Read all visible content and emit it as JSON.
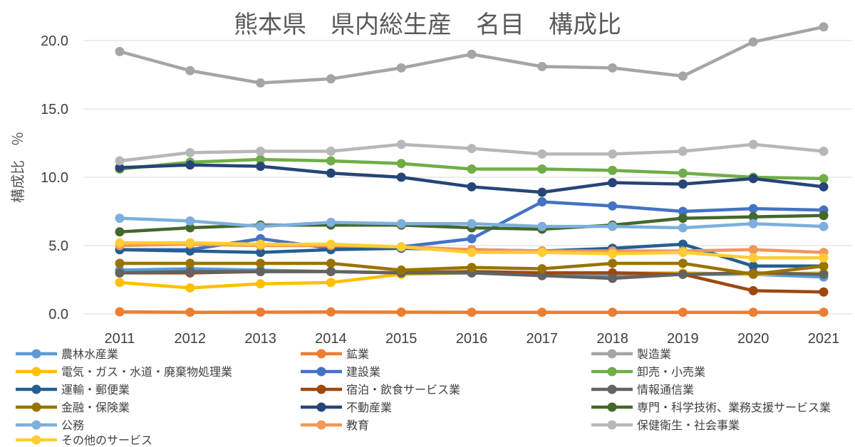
{
  "chart_data": {
    "type": "line",
    "title": "熊本県　県内総生産　名目　構成比",
    "xlabel": "",
    "ylabel": "構成比　％",
    "x": [
      "2011",
      "2012",
      "2013",
      "2014",
      "2015",
      "2016",
      "2017",
      "2018",
      "2019",
      "2020",
      "2021"
    ],
    "ylim": [
      0,
      21
    ],
    "yticks": [
      "0.0",
      "5.0",
      "10.0",
      "15.0",
      "20.0"
    ],
    "ytick_values": [
      0,
      5,
      10,
      15,
      20
    ],
    "grid": true,
    "legend_position": "bottom",
    "series": [
      {
        "name": "農林水産業",
        "color": "#5B9BD5",
        "values": [
          3.2,
          3.3,
          3.2,
          3.1,
          3.0,
          3.1,
          3.0,
          2.8,
          2.9,
          2.9,
          2.7
        ]
      },
      {
        "name": "鉱業",
        "color": "#ED7D31",
        "values": [
          0.15,
          0.12,
          0.13,
          0.14,
          0.13,
          0.12,
          0.12,
          0.12,
          0.12,
          0.12,
          0.12
        ]
      },
      {
        "name": "製造業",
        "color": "#A5A5A5",
        "values": [
          19.2,
          17.8,
          16.9,
          17.2,
          18.0,
          19.0,
          18.1,
          18.0,
          17.4,
          19.9,
          21.0
        ]
      },
      {
        "name": "電気・ガス・水道・廃棄物処理業",
        "color": "#FFC000",
        "values": [
          2.3,
          1.9,
          2.2,
          2.3,
          2.9,
          3.0,
          3.0,
          3.0,
          3.0,
          2.9,
          3.0
        ]
      },
      {
        "name": "建設業",
        "color": "#4472C4",
        "values": [
          4.7,
          4.7,
          5.5,
          4.8,
          4.9,
          5.5,
          8.2,
          7.9,
          7.5,
          7.7,
          7.6
        ]
      },
      {
        "name": "卸売・小売業",
        "color": "#70AD47",
        "values": [
          10.6,
          11.1,
          11.3,
          11.2,
          11.0,
          10.6,
          10.6,
          10.5,
          10.3,
          10.0,
          9.9
        ]
      },
      {
        "name": "運輸・郵便業",
        "color": "#255E91",
        "values": [
          4.7,
          4.6,
          4.5,
          4.7,
          4.8,
          4.7,
          4.6,
          4.8,
          5.1,
          3.5,
          3.5
        ]
      },
      {
        "name": "宿泊・飲食サービス業",
        "color": "#9E480E",
        "values": [
          3.0,
          3.0,
          3.1,
          3.1,
          3.0,
          3.1,
          3.0,
          3.0,
          2.9,
          1.7,
          1.6
        ]
      },
      {
        "name": "情報通信業",
        "color": "#636363",
        "values": [
          3.0,
          3.1,
          3.1,
          3.1,
          3.0,
          3.0,
          2.8,
          2.6,
          2.9,
          3.0,
          2.9
        ]
      },
      {
        "name": "金融・保険業",
        "color": "#997300",
        "values": [
          3.7,
          3.7,
          3.7,
          3.7,
          3.2,
          3.4,
          3.3,
          3.7,
          3.7,
          2.9,
          3.5
        ]
      },
      {
        "name": "不動産業",
        "color": "#264478",
        "values": [
          10.7,
          10.9,
          10.8,
          10.3,
          10.0,
          9.3,
          8.9,
          9.6,
          9.5,
          9.9,
          9.3
        ]
      },
      {
        "name": "専門・科学技術、業務支援サービス業",
        "color": "#43682B",
        "values": [
          6.0,
          6.3,
          6.5,
          6.5,
          6.5,
          6.3,
          6.2,
          6.5,
          7.0,
          7.1,
          7.2
        ]
      },
      {
        "name": "公務",
        "color": "#7CAFDD",
        "values": [
          7.0,
          6.8,
          6.4,
          6.7,
          6.6,
          6.6,
          6.4,
          6.4,
          6.3,
          6.6,
          6.4
        ]
      },
      {
        "name": "教育",
        "color": "#F1975A",
        "values": [
          5.0,
          5.1,
          5.0,
          5.0,
          4.9,
          4.7,
          4.6,
          4.6,
          4.6,
          4.7,
          4.5
        ]
      },
      {
        "name": "保健衛生・社会事業",
        "color": "#B7B7B7",
        "values": [
          11.2,
          11.8,
          11.9,
          11.9,
          12.4,
          12.1,
          11.7,
          11.7,
          11.9,
          12.4,
          11.9
        ]
      },
      {
        "name": "その他のサービス",
        "color": "#FFCD33",
        "values": [
          5.2,
          5.2,
          5.1,
          5.1,
          4.9,
          4.5,
          4.5,
          4.4,
          4.5,
          4.1,
          4.1
        ]
      }
    ]
  }
}
